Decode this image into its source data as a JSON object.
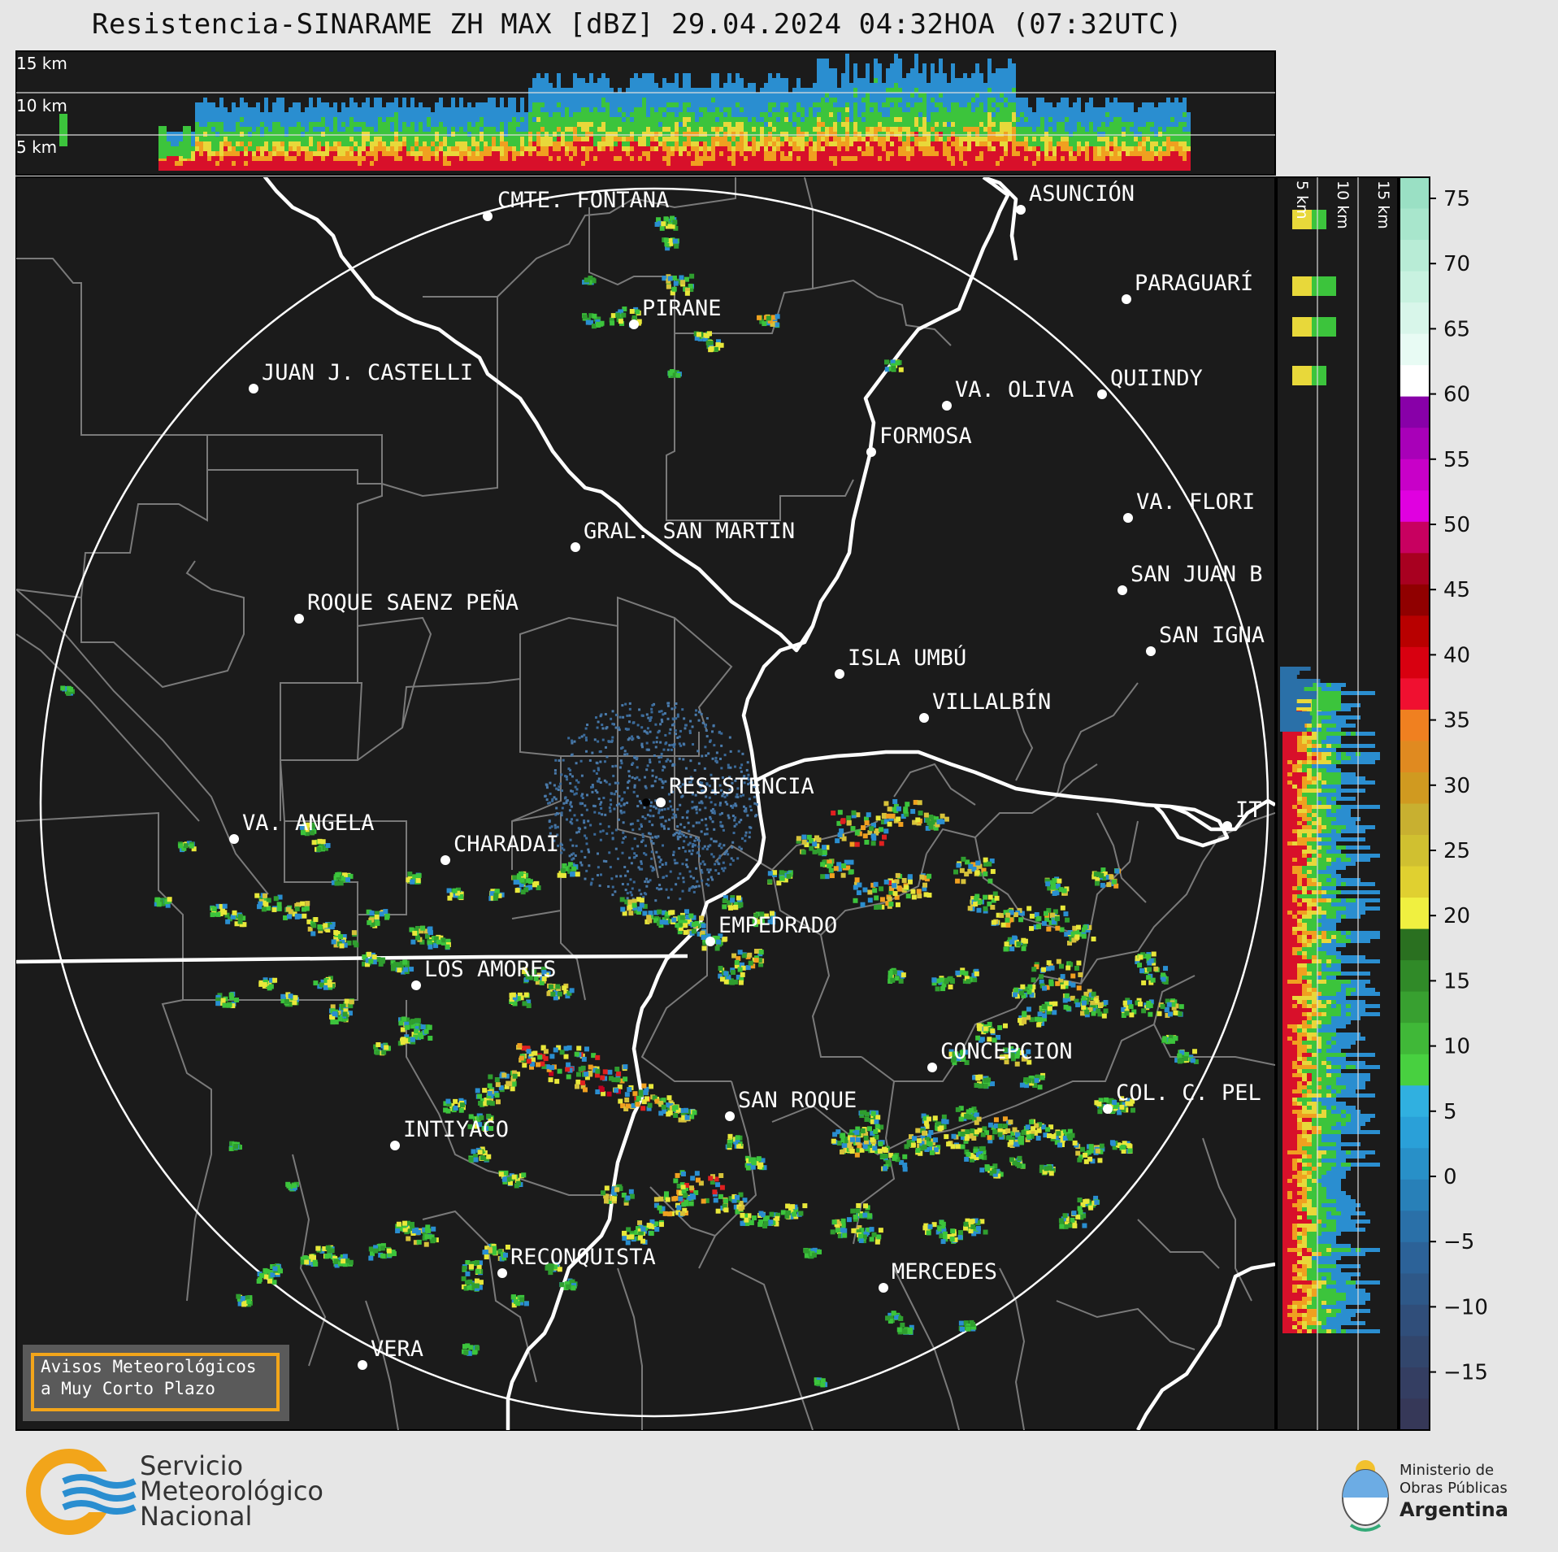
{
  "title": "Resistencia-SINARAME ZH MAX [dBZ] 29.04.2024 04:32HOA (07:32UTC)",
  "top_panel_heights": [
    "15 km",
    "10 km",
    "5 km"
  ],
  "side_panel_heights": [
    "5 km",
    "10 km",
    "15 km"
  ],
  "colorbar": {
    "ticks": [
      "75",
      "70",
      "65",
      "60",
      "55",
      "50",
      "45",
      "40",
      "35",
      "30",
      "25",
      "20",
      "15",
      "10",
      "5",
      "0",
      "−5",
      "−10",
      "−15"
    ]
  },
  "cities": [
    {
      "name": "CMTE. FONTANA",
      "color": "#ffffff"
    },
    {
      "name": "ASUNCIÓN",
      "color": "#ffffff"
    },
    {
      "name": "PARAGUARÍ",
      "color": "#ffffff"
    },
    {
      "name": "PIRANE",
      "color": "#ffffff"
    },
    {
      "name": "JUAN J. CASTELLI",
      "color": "#ffffff"
    },
    {
      "name": "VA. OLIVA",
      "color": "#ffffff"
    },
    {
      "name": "QUIINDY",
      "color": "#ffffff"
    },
    {
      "name": "FORMOSA",
      "color": "#ffffff"
    },
    {
      "name": "VA. FLORI",
      "color": "#ffffff"
    },
    {
      "name": "GRAL. SAN MARTIN",
      "color": "#ffffff"
    },
    {
      "name": "SAN JUAN B",
      "color": "#ffffff"
    },
    {
      "name": "ROQUE SAENZ PEÑA",
      "color": "#ffffff"
    },
    {
      "name": "SAN IGNA",
      "color": "#ffffff"
    },
    {
      "name": "ISLA UMBÚ",
      "color": "#ffffff"
    },
    {
      "name": "VILLALBÍN",
      "color": "#ffffff"
    },
    {
      "name": "RESISTENCIA",
      "color": "#ffffff"
    },
    {
      "name": "IT",
      "color": "#ffffff"
    },
    {
      "name": "VA. ANGELA",
      "color": "#ffffff"
    },
    {
      "name": "CHARADAI",
      "color": "#ffffff"
    },
    {
      "name": "EMPEDRADO",
      "color": "#ffffff"
    },
    {
      "name": "LOS AMORES",
      "color": "#ffffff"
    },
    {
      "name": "CONCEPCION",
      "color": "#ffffff"
    },
    {
      "name": "SAN ROQUE",
      "color": "#ffffff"
    },
    {
      "name": "COL. C. PEL",
      "color": "#ffffff"
    },
    {
      "name": "INTIYACO",
      "color": "#ffffff"
    },
    {
      "name": "RECONQUISTA",
      "color": "#ffffff"
    },
    {
      "name": "MERCEDES",
      "color": "#ffffff"
    },
    {
      "name": "VERA",
      "color": "#ffffff"
    }
  ],
  "warning_box": {
    "line1": "Avisos Meteorológicos",
    "line2": "a Muy Corto Plazo",
    "border_color": "#f2a51a"
  },
  "smn_logo": {
    "line1": "Servicio",
    "line2": "Meteorológico",
    "line3": "Nacional"
  },
  "ministry_logo": {
    "line1": "Ministerio de",
    "line2": "Obras Públicas",
    "line3": "Argentina"
  },
  "colors": {
    "map_bg": "#1b1b1b",
    "page_bg": "#e6e6e6"
  }
}
